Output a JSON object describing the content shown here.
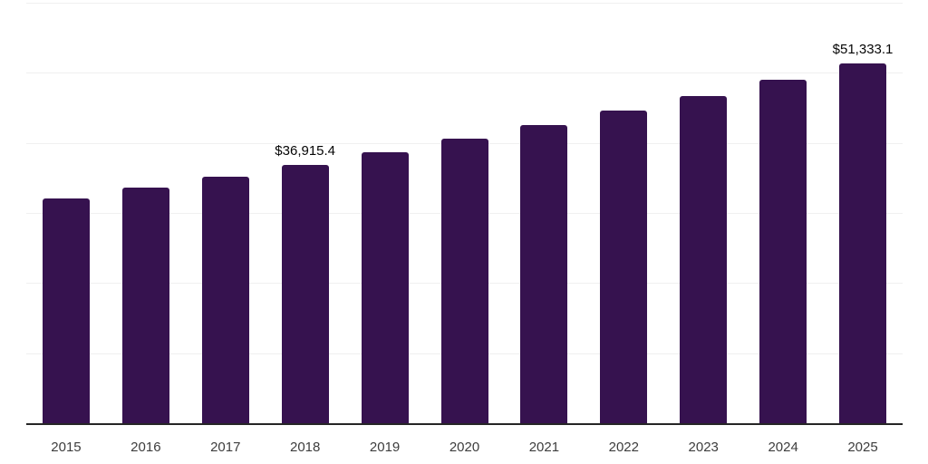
{
  "chart_data": {
    "type": "bar",
    "title": "",
    "xlabel": "",
    "ylabel": "",
    "categories": [
      "2015",
      "2016",
      "2017",
      "2018",
      "2019",
      "2020",
      "2021",
      "2022",
      "2023",
      "2024",
      "2025"
    ],
    "values": [
      32050,
      33600,
      35220,
      36915.4,
      38690,
      40550,
      42500,
      44560,
      46710,
      48960,
      51333.1
    ],
    "data_labels": [
      null,
      null,
      null,
      "$36,915.4",
      null,
      null,
      null,
      null,
      null,
      null,
      "$51,333.1"
    ],
    "ylim": [
      0,
      60000
    ],
    "gridline_step": 10000,
    "grid": "horizontal-only",
    "y_tick_labels_visible": false,
    "legend_position": "none",
    "bar_color": "#36124F",
    "axis_line_color": "#262626",
    "gridline_color": "#f0f0f0",
    "tick_label_color": "#3d3d3d",
    "data_label_color": "#050505",
    "background_color": "#ffffff"
  }
}
